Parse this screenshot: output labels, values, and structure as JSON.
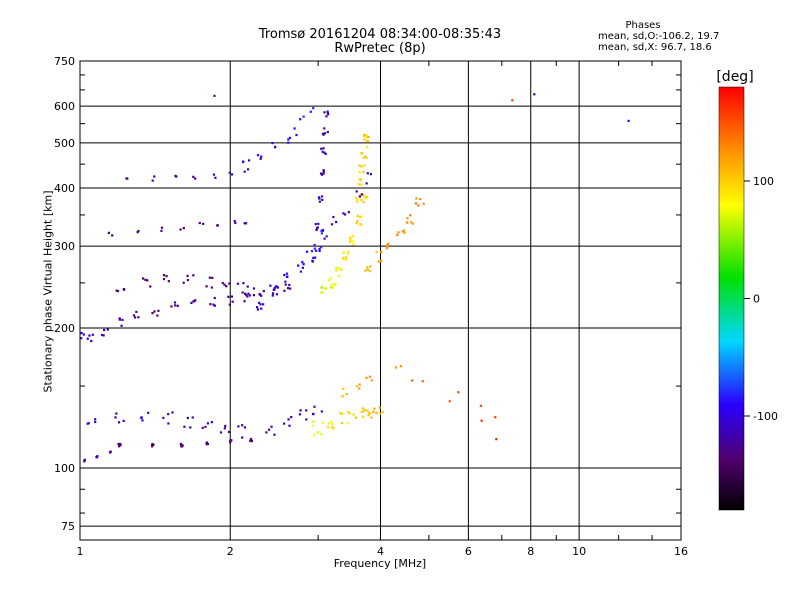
{
  "chart_data": {
    "type": "scatter",
    "title": "Tromsø 20161204 08:34:00-08:35:43",
    "subtitle": "RwPretec (8p)",
    "xlabel": "Frequency [MHz]",
    "ylabel": "Stationary phase Virtual Height [km]",
    "x_scale": "log",
    "y_scale": "log",
    "xlim": [
      1,
      16
    ],
    "ylim": [
      70,
      750
    ],
    "x_ticks": [
      "1",
      "2",
      "4",
      "6",
      "8",
      "10",
      "16"
    ],
    "y_ticks": [
      "75",
      "100",
      "200",
      "300",
      "400",
      "500",
      "600",
      "750"
    ],
    "grid": true,
    "colorbar": {
      "label": "[deg]",
      "range": [
        -180,
        180
      ],
      "ticks": [
        "100",
        "0",
        "-100"
      ]
    },
    "annotations": {
      "phases_title": "Phases",
      "phases_o": "mean, sd,O:-106.2, 19.7",
      "phases_x": "mean, sd,X:  96.7, 18.6"
    },
    "traces": [
      {
        "x": [
          1.0,
          1.05,
          1.12,
          1.2,
          1.3,
          1.42,
          1.55,
          1.7,
          1.85,
          2.0,
          2.15,
          2.3,
          2.45,
          2.6
        ],
        "y": [
          192,
          190,
          195,
          205,
          212,
          218,
          222,
          225,
          228,
          230,
          234,
          238,
          242,
          245
        ],
        "phase": [
          -110,
          -105,
          -112,
          -120,
          -125,
          -130,
          -128,
          -132,
          -130,
          -128,
          -125,
          -122,
          -120,
          -118
        ],
        "spread": 0.035,
        "n": 4
      },
      {
        "x": [
          1.2,
          1.35,
          1.5,
          1.65,
          1.8,
          1.95,
          2.1,
          2.2
        ],
        "y": [
          245,
          250,
          255,
          252,
          248,
          245,
          242,
          240
        ],
        "phase": [
          -135,
          -140,
          -138,
          -136,
          -134,
          -132,
          -130,
          -128
        ],
        "spread": 0.05,
        "n": 4
      },
      {
        "x": [
          2.3,
          2.45,
          2.6,
          2.75,
          2.9,
          3.0,
          3.1
        ],
        "y": [
          225,
          240,
          255,
          270,
          285,
          300,
          320
        ],
        "phase": [
          -105,
          -100,
          -95,
          -90,
          -88,
          -86,
          -84
        ],
        "spread": 0.04,
        "n": 6
      },
      {
        "x": [
          3.0,
          3.02,
          3.05,
          3.07,
          3.1,
          3.12
        ],
        "y": [
          330,
          380,
          430,
          480,
          530,
          580
        ],
        "phase": [
          -110,
          -112,
          -115,
          -114,
          -116,
          -118
        ],
        "spread": 0.025,
        "n": 5
      },
      {
        "x": [
          3.1,
          3.2,
          3.3,
          3.4,
          3.5,
          3.6,
          3.7
        ],
        "y": [
          240,
          250,
          265,
          285,
          310,
          340,
          380
        ],
        "phase": [
          70,
          75,
          80,
          85,
          90,
          92,
          95
        ],
        "spread": 0.035,
        "n": 7
      },
      {
        "x": [
          3.6,
          3.63,
          3.66,
          3.7,
          3.72,
          3.75
        ],
        "y": [
          380,
          410,
          440,
          470,
          500,
          520
        ],
        "phase": [
          95,
          96,
          98,
          100,
          100,
          102
        ],
        "spread": 0.03,
        "n": 5
      },
      {
        "x": [
          3.8,
          4.0,
          4.2,
          4.4,
          4.6,
          4.8
        ],
        "y": [
          270,
          285,
          300,
          320,
          345,
          375
        ],
        "phase": [
          110,
          115,
          120,
          125,
          130,
          132
        ],
        "spread": 0.04,
        "n": 5
      },
      {
        "x": [
          3.2,
          3.4,
          3.6,
          3.8
        ],
        "y": [
          340,
          360,
          390,
          420
        ],
        "phase": [
          -120,
          -118,
          -115,
          -110
        ],
        "spread": 0.04,
        "n": 3
      },
      {
        "x": [
          1.15,
          1.3,
          1.45,
          1.6,
          1.75,
          1.9,
          2.05,
          2.15
        ],
        "y": [
          318,
          322,
          328,
          330,
          334,
          336,
          338,
          340
        ],
        "phase": [
          -125,
          -128,
          -130,
          -132,
          -130,
          -128,
          -126,
          -124
        ],
        "spread": 0.02,
        "n": 2
      },
      {
        "x": [
          1.25,
          1.4,
          1.55,
          1.7,
          1.85,
          2.0,
          2.15
        ],
        "y": [
          415,
          418,
          420,
          422,
          425,
          430,
          435
        ],
        "phase": [
          -130,
          -125,
          -120,
          -118,
          -115,
          -112,
          -110
        ],
        "spread": 0.02,
        "n": 2
      },
      {
        "x": [
          2.15,
          2.3,
          2.45,
          2.6
        ],
        "y": [
          450,
          470,
          490,
          510
        ],
        "phase": [
          -100,
          -95,
          -92,
          -90
        ],
        "spread": 0.03,
        "n": 3
      },
      {
        "x": [
          2.7,
          2.8,
          2.9
        ],
        "y": [
          530,
          560,
          590
        ],
        "phase": [
          -90,
          -85,
          -80
        ],
        "spread": 0.03,
        "n": 2
      },
      {
        "x": [
          1.02,
          1.08,
          1.15
        ],
        "y": [
          104,
          106,
          108
        ],
        "phase": [
          -125,
          -122,
          -120
        ],
        "spread": 0.01,
        "n": 3
      },
      {
        "x": [
          1.2,
          1.4,
          1.6,
          1.8,
          2.0,
          2.2
        ],
        "y": [
          112,
          112,
          112,
          113,
          114,
          115
        ],
        "phase": [
          -140,
          -138,
          -136,
          -134,
          -132,
          -130
        ],
        "spread": 0.01,
        "n": 5
      },
      {
        "x": [
          1.05,
          1.2,
          1.35,
          1.5,
          1.65,
          1.8,
          1.95,
          2.1
        ],
        "y": [
          125,
          128,
          130,
          128,
          126,
          124,
          122,
          120
        ],
        "phase": [
          -110,
          -108,
          -105,
          -110,
          -115,
          -120,
          -118,
          -115
        ],
        "spread": 0.045,
        "n": 4
      },
      {
        "x": [
          2.4,
          2.6,
          2.8,
          3.0
        ],
        "y": [
          120,
          125,
          130,
          135
        ],
        "phase": [
          -120,
          -115,
          -110,
          -105
        ],
        "spread": 0.05,
        "n": 4
      },
      {
        "x": [
          3.0,
          3.2,
          3.4,
          3.6,
          3.8,
          3.95
        ],
        "y": [
          122,
          125,
          128,
          130,
          132,
          135
        ],
        "phase": [
          80,
          90,
          95,
          100,
          105,
          108
        ],
        "spread": 0.05,
        "n": 6
      },
      {
        "x": [
          3.4,
          3.6,
          3.8
        ],
        "y": [
          145,
          150,
          155
        ],
        "phase": [
          110,
          115,
          120
        ],
        "spread": 0.03,
        "n": 3
      },
      {
        "x": [
          4.3,
          4.8,
          5.5,
          6.2,
          7.0
        ],
        "y": [
          160,
          150,
          140,
          130,
          120
        ],
        "phase": [
          130,
          140,
          150,
          155,
          160
        ],
        "spread": 0.1,
        "n": 2
      },
      {
        "x": [
          1.85,
          7.3,
          8.2,
          12.5
        ],
        "y": [
          640,
          620,
          640,
          560
        ],
        "phase": [
          -120,
          150,
          -120,
          -110
        ],
        "spread": 0.02,
        "n": 1
      }
    ]
  }
}
